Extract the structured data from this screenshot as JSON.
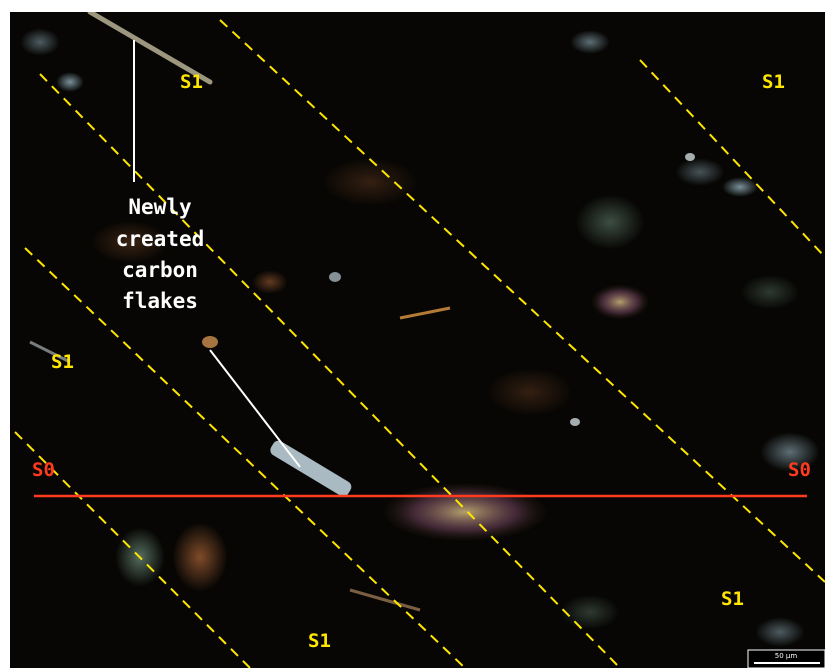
{
  "image": {
    "description_labels": {
      "s1_labels": [
        "S1",
        "S1",
        "S1",
        "S1",
        "S1"
      ],
      "s0_labels": [
        "S0",
        "S0"
      ],
      "annotation": [
        "Newly",
        "created",
        "carbon",
        "flakes"
      ],
      "scale_bar": "50 µm"
    },
    "colors": {
      "background": "#070604",
      "s1_traces": "#ffe600",
      "s0_trace": "#ff3b1f",
      "annotation": "#ffffff"
    }
  }
}
